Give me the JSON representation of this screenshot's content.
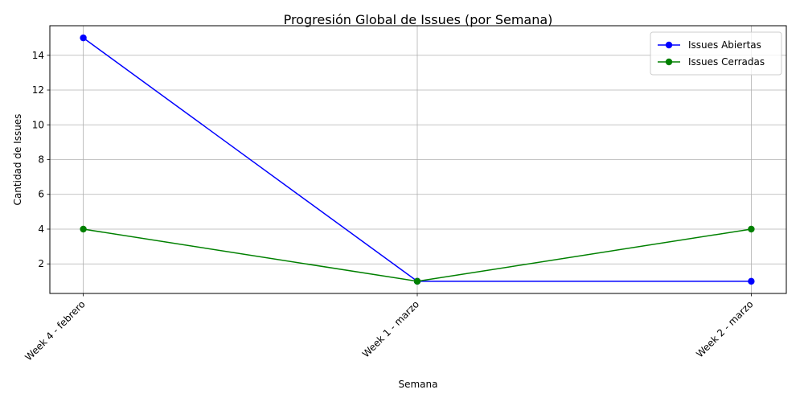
{
  "chart_data": {
    "type": "line",
    "title": "Progresión Global de Issues (por Semana)",
    "xlabel": "Semana",
    "ylabel": "Cantidad de Issues",
    "categories": [
      "Week 4 - febrero",
      "Week 1 - marzo",
      "Week 2 - marzo"
    ],
    "series": [
      {
        "name": "Issues Abiertas",
        "values": [
          15,
          1,
          1
        ],
        "color": "#0000ff"
      },
      {
        "name": "Issues Cerradas",
        "values": [
          4,
          1,
          4
        ],
        "color": "#008000"
      }
    ],
    "ylim": [
      0.3,
      15.7
    ],
    "yticks": [
      2,
      4,
      6,
      8,
      10,
      12,
      14
    ],
    "grid": true,
    "legend": "top-right",
    "marker": "circle"
  }
}
